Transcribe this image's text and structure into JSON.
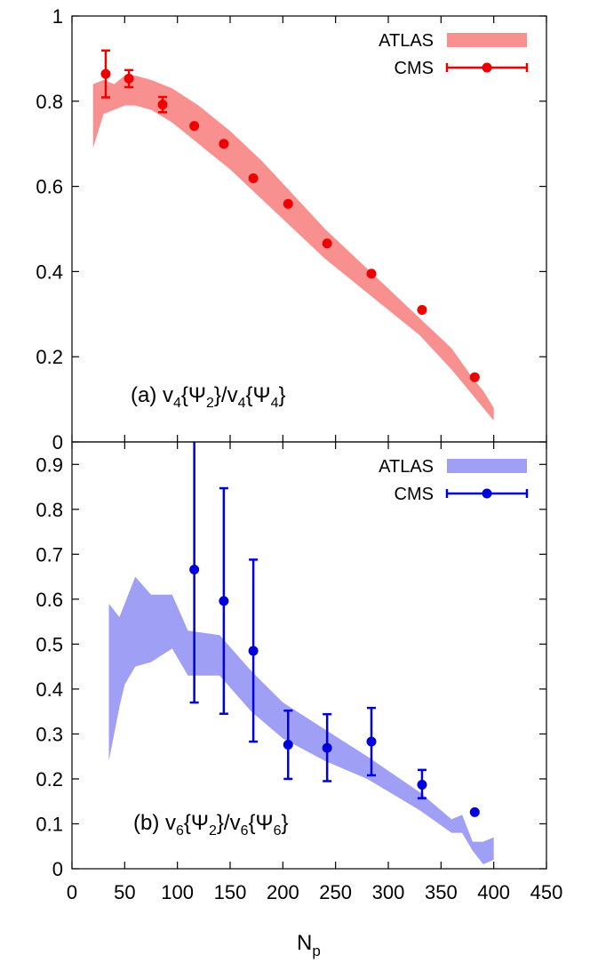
{
  "chart_data": [
    {
      "type": "area",
      "panel": "top",
      "title": "",
      "annotation": {
        "text": "(a) v",
        "sub1": "4",
        "mid1": "{Ψ",
        "sub2": "2",
        "mid2": "}/v",
        "sub3": "4",
        "mid3": "{Ψ",
        "sub4": "4",
        "end": "}"
      },
      "xlabel": "",
      "ylabel": "",
      "xlim": [
        0,
        450
      ],
      "ylim": [
        0,
        1
      ],
      "yticks": [
        0,
        0.2,
        0.4,
        0.6,
        0.8,
        1
      ],
      "ytick_labels": [
        "0",
        "0.2",
        "0.4",
        "0.6",
        "0.8",
        "1"
      ],
      "legend_position": "top-right",
      "series": [
        {
          "name": "ATLAS",
          "kind": "band",
          "color": "#f89090",
          "x": [
            20,
            30,
            40,
            50,
            60,
            75,
            95,
            120,
            150,
            180,
            210,
            240,
            270,
            300,
            330,
            360,
            380,
            390,
            400
          ],
          "lower": [
            0.69,
            0.77,
            0.78,
            0.79,
            0.79,
            0.78,
            0.75,
            0.7,
            0.64,
            0.57,
            0.5,
            0.43,
            0.37,
            0.31,
            0.25,
            0.17,
            0.11,
            0.08,
            0.05
          ],
          "upper": [
            0.84,
            0.85,
            0.84,
            0.86,
            0.86,
            0.85,
            0.83,
            0.79,
            0.73,
            0.66,
            0.58,
            0.5,
            0.43,
            0.36,
            0.29,
            0.22,
            0.15,
            0.12,
            0.08
          ]
        },
        {
          "name": "CMS",
          "kind": "points",
          "color": "#ee0000",
          "x": [
            32,
            54,
            86,
            116,
            144,
            172,
            205,
            242,
            284,
            332,
            382
          ],
          "y": [
            0.864,
            0.853,
            0.792,
            0.742,
            0.7,
            0.619,
            0.559,
            0.466,
            0.395,
            0.31,
            0.152
          ],
          "yerr": [
            0.055,
            0.02,
            0.018,
            0.007,
            0.007,
            0.007,
            0.007,
            0.007,
            0.007,
            0.007,
            0.007
          ]
        }
      ]
    },
    {
      "type": "area",
      "panel": "bottom",
      "title": "",
      "annotation": {
        "text": "(b) v",
        "sub1": "6",
        "mid1": "{Ψ",
        "sub2": "2",
        "mid2": "}/v",
        "sub3": "6",
        "mid3": "{Ψ",
        "sub4": "6",
        "end": "}"
      },
      "xlabel": "N",
      "xlabel_sub": "p",
      "ylabel": "",
      "xlim": [
        0,
        450
      ],
      "ylim": [
        0,
        0.95
      ],
      "xticks": [
        0,
        50,
        100,
        150,
        200,
        250,
        300,
        350,
        400,
        450
      ],
      "xtick_labels": [
        "0",
        "50",
        "100",
        "150",
        "200",
        "250",
        "300",
        "350",
        "400",
        "450"
      ],
      "yticks": [
        0,
        0.1,
        0.2,
        0.3,
        0.4,
        0.5,
        0.6,
        0.7,
        0.8,
        0.9
      ],
      "ytick_labels": [
        "0",
        "0.1",
        "0.2",
        "0.3",
        "0.4",
        "0.5",
        "0.6",
        "0.7",
        "0.8",
        "0.9"
      ],
      "legend_position": "top-right",
      "series": [
        {
          "name": "ATLAS",
          "kind": "band",
          "color": "#9f9ff5",
          "x": [
            35,
            45,
            50,
            60,
            75,
            95,
            110,
            140,
            170,
            200,
            240,
            280,
            330,
            360,
            370,
            380,
            390,
            400
          ],
          "lower": [
            0.24,
            0.36,
            0.41,
            0.45,
            0.46,
            0.49,
            0.43,
            0.43,
            0.35,
            0.29,
            0.24,
            0.2,
            0.13,
            0.08,
            0.08,
            0.04,
            0.01,
            0.02
          ],
          "upper": [
            0.59,
            0.56,
            0.59,
            0.65,
            0.61,
            0.61,
            0.53,
            0.52,
            0.44,
            0.37,
            0.31,
            0.25,
            0.17,
            0.11,
            0.12,
            0.06,
            0.06,
            0.07
          ]
        },
        {
          "name": "CMS",
          "kind": "points",
          "color": "#0000dd",
          "x": [
            116,
            144,
            172,
            205,
            242,
            284,
            332,
            382
          ],
          "y": [
            0.666,
            0.596,
            0.485,
            0.276,
            0.269,
            0.283,
            0.187,
            0.126
          ],
          "ylow": [
            0.37,
            0.345,
            0.283,
            0.2,
            0.195,
            0.208,
            0.157,
            0.126
          ],
          "yhigh": [
            1.0,
            0.847,
            0.688,
            0.352,
            0.344,
            0.358,
            0.22,
            0.126
          ]
        }
      ]
    }
  ]
}
